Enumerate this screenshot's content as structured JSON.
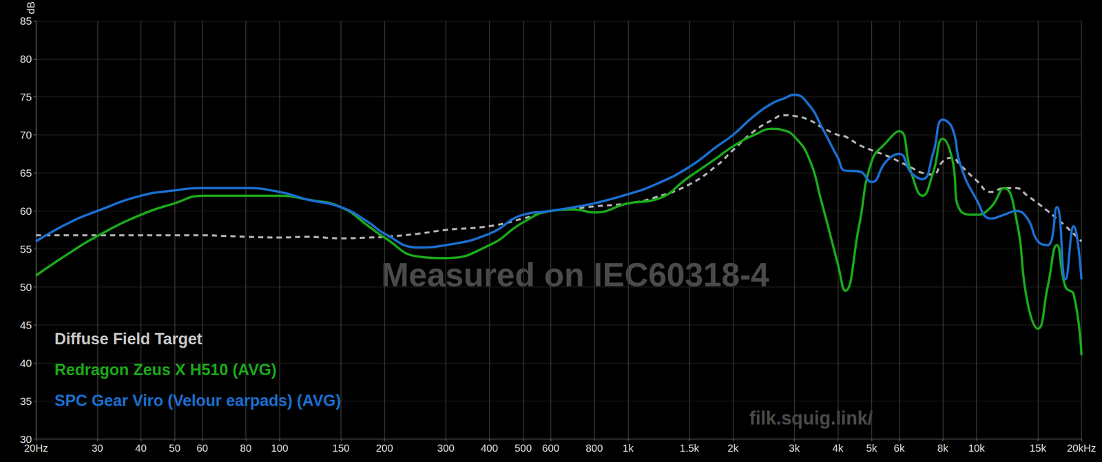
{
  "chart_data": {
    "type": "line",
    "ylabel": "dB",
    "log": "x",
    "grid": true,
    "legend": "lower left",
    "annotations": [
      "Measured on IEC60318-4",
      "filk.squig.link/"
    ],
    "xlim": [
      20,
      20000
    ],
    "xticks": [
      {
        "value": 20,
        "label": "20Hz"
      },
      30,
      40,
      50,
      60,
      80,
      100,
      150,
      200,
      300,
      400,
      500,
      600,
      800,
      {
        "value": 1000,
        "label": "1k"
      },
      {
        "value": 1500,
        "label": "1.5k"
      },
      {
        "value": 2000,
        "label": "2k"
      },
      {
        "value": 3000,
        "label": "3k"
      },
      {
        "value": 4000,
        "label": "4k"
      },
      {
        "value": 5000,
        "label": "5k"
      },
      {
        "value": 6000,
        "label": "6k"
      },
      {
        "value": 8000,
        "label": "8k"
      },
      {
        "value": 10000,
        "label": "10k"
      },
      {
        "value": 15000,
        "label": "15k"
      },
      {
        "value": 20000,
        "label": "20kHz"
      }
    ],
    "ylim": [
      30,
      85
    ],
    "yticks": [
      30,
      35,
      40,
      45,
      50,
      55,
      60,
      65,
      70,
      75,
      80,
      85
    ],
    "x": [
      20,
      25,
      30,
      40,
      50,
      60,
      70,
      80,
      100,
      120,
      150,
      180,
      200,
      250,
      300,
      400,
      500,
      600,
      700,
      800,
      1000,
      1200,
      1500,
      1800,
      2000,
      2300,
      2600,
      2800,
      3000,
      3300,
      3600,
      4000,
      4200,
      4600,
      5000,
      5500,
      6000,
      6500,
      7000,
      7500,
      8000,
      8500,
      9000,
      10000,
      11000,
      12000,
      13000,
      14000,
      15000,
      16000,
      17000,
      18000,
      19000,
      20000
    ],
    "series": [
      {
        "name": "Diffuse Field Target",
        "color": "#b4b4b4",
        "line_style": "dashed",
        "values": [
          56.8,
          56.8,
          56.8,
          56.8,
          56.8,
          56.8,
          56.7,
          56.6,
          56.5,
          56.6,
          56.4,
          56.5,
          56.6,
          57,
          57.5,
          58,
          59,
          60,
          60.3,
          60.6,
          61,
          61.8,
          63.5,
          66,
          68,
          70.5,
          72,
          72.6,
          72.5,
          72,
          71,
          70,
          69.8,
          68.7,
          68,
          67.3,
          66.5,
          65.7,
          65,
          64.8,
          66.5,
          67,
          66,
          64,
          62.5,
          63,
          63,
          62,
          61,
          60,
          59,
          58,
          57,
          56
        ]
      },
      {
        "name": "Redragon Zeus X H510 (AVG)",
        "color": "#1aaa1a",
        "line_style": "solid",
        "values": [
          51.5,
          54.5,
          56.7,
          59.5,
          61,
          62,
          62,
          62,
          62,
          61.5,
          60.5,
          58,
          56.5,
          54,
          53.8,
          55.5,
          58.5,
          60,
          60.2,
          59.8,
          61,
          61.5,
          64.5,
          67,
          68.5,
          70,
          70.8,
          70.6,
          69.8,
          67,
          61,
          53,
          49.5,
          58,
          66.5,
          69,
          70.5,
          65,
          62,
          65,
          69.5,
          67,
          60,
          59.5,
          60.5,
          63,
          59,
          48,
          44.5,
          50,
          55.5,
          50,
          49,
          41
        ]
      },
      {
        "name": "SPC Gear Viro (Velour earpads) (AVG)",
        "color": "#1a6fd0",
        "line_style": "solid",
        "values": [
          56,
          58.5,
          60,
          62,
          62.7,
          63,
          63,
          63,
          62.5,
          61.5,
          60.5,
          58.5,
          57,
          55.2,
          55.5,
          57,
          59.5,
          60,
          60.5,
          61,
          62.2,
          63.5,
          65.8,
          68.5,
          70,
          72.5,
          74.2,
          74.8,
          75.3,
          74,
          71,
          67,
          65.3,
          65.2,
          63.8,
          66.5,
          67.5,
          65,
          64.2,
          67.5,
          72,
          71,
          66,
          61.5,
          59,
          59.5,
          60,
          59,
          56,
          55.5,
          60.5,
          51,
          58,
          51
        ]
      }
    ]
  }
}
